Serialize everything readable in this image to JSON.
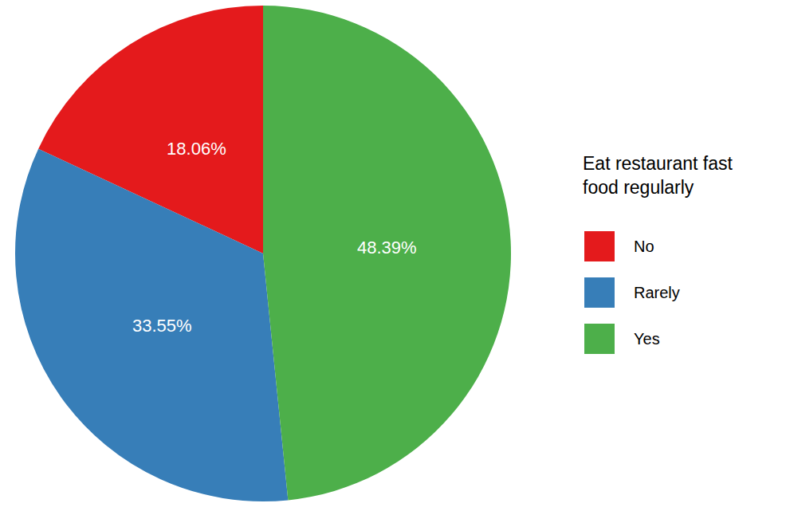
{
  "chart_data": {
    "type": "pie",
    "legend_title": "Eat restaurant fast food regularly",
    "categories": [
      "No",
      "Rarely",
      "Yes"
    ],
    "values": [
      18.06,
      33.55,
      48.39
    ],
    "value_labels": [
      "18.06%",
      "33.55%",
      "48.39%"
    ],
    "colors": [
      "#e41a1c",
      "#377eb8",
      "#4daf4a"
    ],
    "data_labels": true,
    "legend": "right"
  }
}
